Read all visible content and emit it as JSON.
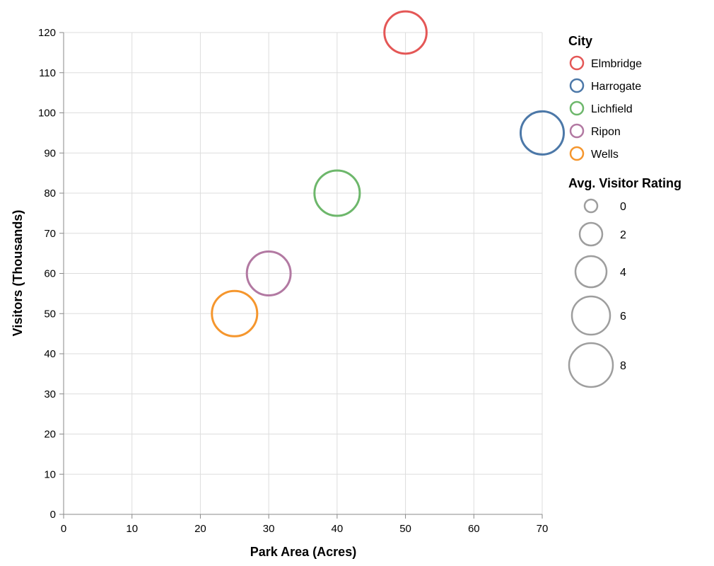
{
  "chart_data": {
    "type": "scatter",
    "xlabel": "Park Area (Acres)",
    "ylabel": "Visitors (Thousands)",
    "xlim": [
      0,
      70
    ],
    "ylim": [
      0,
      120
    ],
    "x_ticks": [
      0,
      10,
      20,
      30,
      40,
      50,
      60,
      70
    ],
    "y_ticks": [
      0,
      10,
      20,
      30,
      40,
      50,
      60,
      70,
      80,
      90,
      100,
      110,
      120
    ],
    "grid": true,
    "legend_placement": "right",
    "series": [
      {
        "name": "Elmbridge",
        "x": 50,
        "y": 120,
        "rating": 6.5,
        "color": "#e45756"
      },
      {
        "name": "Harrogate",
        "x": 70,
        "y": 95,
        "rating": 6.8,
        "color": "#4c78a8"
      },
      {
        "name": "Lichfield",
        "x": 40,
        "y": 80,
        "rating": 7.5,
        "color": "#6db76b"
      },
      {
        "name": "Ripon",
        "x": 30,
        "y": 60,
        "rating": 7.0,
        "color": "#b279a2"
      },
      {
        "name": "Wells",
        "x": 25,
        "y": 50,
        "rating": 7.5,
        "color": "#f5962d"
      }
    ],
    "color_legend": {
      "title": "City",
      "entries": [
        "Elmbridge",
        "Harrogate",
        "Lichfield",
        "Ripon",
        "Wells"
      ]
    },
    "size_legend": {
      "title": "Avg. Visitor Rating",
      "values": [
        0,
        2,
        4,
        6,
        8
      ],
      "labels": [
        "0",
        "2",
        "4",
        "6",
        "8"
      ],
      "color": "#9e9e9e"
    }
  }
}
